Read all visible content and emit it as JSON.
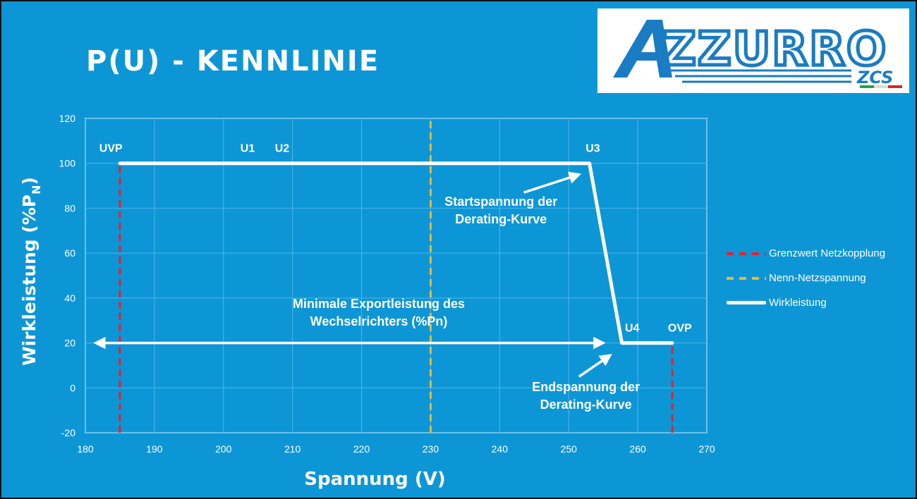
{
  "slide": {
    "title": "P(U) - KENNLINIE"
  },
  "logo": {
    "brand": "AZZURRO",
    "sub": "ZCS"
  },
  "chart_data": {
    "type": "line",
    "xlabel": "Spannung (V)",
    "ylabel": "Wirkleistung (%P",
    "ylabel_subscript": "N",
    "ylabel_suffix": ")",
    "xlim": [
      180,
      270
    ],
    "ylim": [
      -20,
      120
    ],
    "x_ticks": [
      180,
      190,
      200,
      210,
      220,
      230,
      240,
      250,
      260,
      270
    ],
    "y_ticks": [
      -20,
      0,
      20,
      40,
      60,
      80,
      100,
      120
    ],
    "grid": true,
    "legend_position": "right",
    "series": [
      {
        "name": "Grenzwert Netzkopplung",
        "style": "dashed",
        "color": "#e8202a",
        "segments": [
          [
            [
              185,
              -20
            ],
            [
              185,
              100
            ]
          ],
          [
            [
              265,
              -20
            ],
            [
              265,
              20
            ]
          ]
        ]
      },
      {
        "name": "Nenn-Netzspannung",
        "style": "dashed",
        "color": "#f2b630",
        "segments": [
          [
            [
              230,
              -20
            ],
            [
              230,
              120
            ]
          ]
        ]
      },
      {
        "name": "Wirkleistung",
        "style": "solid",
        "color": "#ffffff",
        "x": [
          185,
          253,
          257.7,
          265
        ],
        "y": [
          100,
          100,
          20,
          20
        ]
      }
    ],
    "point_labels": [
      {
        "text": "UVP",
        "x": 183.7,
        "y": 107
      },
      {
        "text": "U1",
        "x": 203.5,
        "y": 107
      },
      {
        "text": "U2",
        "x": 208.5,
        "y": 107
      },
      {
        "text": "U3",
        "x": 253.5,
        "y": 107
      },
      {
        "text": "U4",
        "x": 259.2,
        "y": 27
      },
      {
        "text": "OVP",
        "x": 266.1,
        "y": 27
      }
    ],
    "annotations": [
      {
        "lines": [
          "Startspannung der",
          "Derating-Kurve"
        ],
        "x": 240.2,
        "y": 81,
        "arrow_from": [
          243.5,
          87
        ],
        "arrow_to": [
          251.5,
          95
        ]
      },
      {
        "lines": [
          "Minimale Exportleistung des",
          "Wechselrichters (%Pn)"
        ],
        "x": 222.5,
        "y": 35.5
      },
      {
        "lines": [
          "Endspannung der",
          "Derating-Kurve"
        ],
        "x": 252.5,
        "y": -1.5,
        "arrow_from": [
          251.5,
          5
        ],
        "arrow_to": [
          256,
          14.5
        ]
      }
    ],
    "double_arrow": {
      "from": [
        181.5,
        20
      ],
      "to": [
        255,
        20
      ]
    }
  }
}
